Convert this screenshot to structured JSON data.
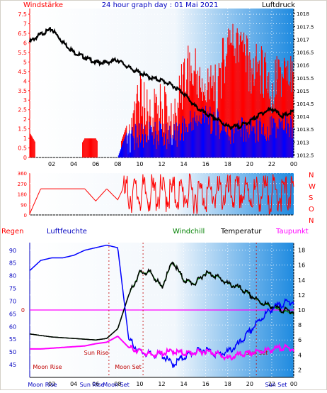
{
  "header": {
    "left_label": "Windstärke",
    "title": "24 hour graph day : 01 Mai 2021",
    "right_label": "Luftdruck"
  },
  "colors": {
    "frame": "#d4d0c8",
    "wind_gust": "#ff0000",
    "wind_avg": "#0000ff",
    "pressure": "#000000",
    "direction": "#ff0000",
    "humidity": "#0000ff",
    "temperature": "#000000",
    "windchill": "#008000",
    "dewpoint": "#ff00ff",
    "rain_line": "#c00000",
    "label_red": "#ff0000",
    "label_blue": "#0000c0"
  },
  "chart_data": [
    {
      "type": "bar",
      "title": "24 hour graph day : 01 Mai 2021",
      "ylabel_left": "Windstärke",
      "ylabel_right": "Luftdruck",
      "xticks": [
        "02",
        "04",
        "06",
        "08",
        "10",
        "12",
        "14",
        "16",
        "18",
        "20",
        "22",
        "00"
      ],
      "yticks_left": [
        "0",
        "0.5",
        "1",
        "1.5",
        "2",
        "2.5",
        "3",
        "3.5",
        "4",
        "4.5",
        "5",
        "5.5",
        "6",
        "6.5",
        "7",
        "7.5"
      ],
      "yticks_right": [
        "1012.5",
        "1013",
        "1013.5",
        "1014",
        "1014.5",
        "1015",
        "1015.5",
        "1016",
        "1016.5",
        "1017",
        "1017.5",
        "1018"
      ],
      "ylim_left": [
        0,
        7.8
      ],
      "ylim_right": [
        1012.4,
        1018.2
      ],
      "x_hours": [
        0,
        1,
        2,
        3,
        4,
        5,
        6,
        7,
        8,
        9,
        10,
        11,
        12,
        13,
        14,
        15,
        16,
        17,
        18,
        19,
        20,
        21,
        22,
        23,
        24
      ],
      "series": [
        {
          "name": "Windstärke",
          "values": [
            1.3,
            0.3,
            0,
            0,
            0,
            1,
            1,
            0,
            0.3,
            2,
            4.5,
            3.5,
            4,
            3,
            5.8,
            6,
            5,
            5,
            7.5,
            7.6,
            6,
            6.2,
            5,
            5.8,
            5.6
          ]
        },
        {
          "name": "Wind avg",
          "values": [
            0,
            0,
            0,
            0,
            0,
            0,
            0,
            0,
            0,
            1.6,
            1.9,
            1.9,
            1.9,
            1.9,
            2.2,
            2.8,
            2.8,
            2.6,
            2,
            2.1,
            2.2,
            2.2,
            2.2,
            2.4,
            2.3
          ]
        },
        {
          "name": "Luftdruck",
          "values": [
            1016.9,
            1017.2,
            1017.4,
            1016.9,
            1016.5,
            1016.3,
            1016.1,
            1016.1,
            1016.2,
            1015.9,
            1015.7,
            1015.5,
            1015.4,
            1015.2,
            1014.9,
            1014.4,
            1014.1,
            1013.9,
            1013.6,
            1013.6,
            1013.8,
            1014.1,
            1014.3,
            1014,
            1014.2
          ]
        }
      ]
    },
    {
      "type": "line",
      "yticks": [
        "0",
        "90",
        "180",
        "270",
        "360"
      ],
      "ylim": [
        0,
        360
      ],
      "direction_labels": [
        "N",
        "W",
        "S",
        "O",
        "N"
      ],
      "x_hours": [
        0,
        1,
        2,
        3,
        4,
        5,
        6,
        7,
        8,
        9,
        10,
        11,
        12,
        13,
        14,
        15,
        16,
        17,
        18,
        19,
        20,
        21,
        22,
        23,
        24
      ],
      "series": [
        {
          "name": "Windrichtung",
          "values": [
            10,
            225,
            225,
            225,
            225,
            225,
            120,
            225,
            130,
            330,
            100,
            300,
            70,
            340,
            90,
            270,
            50,
            350,
            80,
            300,
            60,
            330,
            40,
            330,
            30
          ]
        }
      ]
    },
    {
      "type": "line",
      "labels": {
        "rain": "Regen",
        "humidity": "Luftfeuchte",
        "windchill": "Windchill",
        "temperature": "Temperatur",
        "dewpoint": "Taupunkt"
      },
      "yticks_humidity": [
        "45",
        "50",
        "55",
        "60",
        "65",
        "70",
        "75",
        "80",
        "85",
        "90"
      ],
      "rain_axis": [
        "0"
      ],
      "yticks_temp": [
        "2",
        "4",
        "6",
        "8",
        "10",
        "12",
        "14",
        "16",
        "18"
      ],
      "ylim_humidity": [
        40,
        93
      ],
      "ylim_temp": [
        1,
        19
      ],
      "xticks": [
        "02",
        "04",
        "06",
        "08",
        "10",
        "12",
        "14",
        "16",
        "18",
        "20",
        "22",
        "00"
      ],
      "annotations": [
        "Sun Rise",
        "Sun Set",
        "Moon Rise",
        "Moon Set",
        "Moon Rise",
        "Sun Rise",
        "Sun Set",
        "Moon Set"
      ],
      "x_hours": [
        0,
        1,
        2,
        3,
        4,
        5,
        6,
        7,
        8,
        9,
        10,
        11,
        12,
        13,
        14,
        15,
        16,
        17,
        18,
        19,
        20,
        21,
        22,
        23,
        24
      ],
      "series": [
        {
          "name": "Luftfeuchte",
          "values": [
            82,
            86,
            87,
            87,
            88,
            90,
            91,
            92,
            91,
            55,
            50,
            49,
            49,
            45,
            48,
            50,
            51,
            49,
            50,
            53,
            58,
            63,
            67,
            69,
            70
          ]
        },
        {
          "name": "Temperatur",
          "values": [
            6.8,
            6.6,
            6.4,
            6.3,
            6.2,
            6.1,
            6,
            6.2,
            7.5,
            12,
            15,
            15,
            13,
            16.5,
            14,
            13.5,
            15,
            14.5,
            13.5,
            13,
            12,
            11,
            10.5,
            10,
            9.8
          ]
        },
        {
          "name": "Windchill",
          "values": [
            6.8,
            6.6,
            6.4,
            6.3,
            6.2,
            6.1,
            6,
            6.2,
            7.5,
            12,
            15,
            15,
            13,
            16.5,
            14,
            13.5,
            15,
            14.5,
            13.5,
            13,
            12,
            11,
            10.4,
            9.8,
            9.6
          ]
        },
        {
          "name": "Taupunkt",
          "values": [
            4.8,
            4.8,
            4.9,
            5,
            5.1,
            5.2,
            5.5,
            5.7,
            6.5,
            5,
            4.5,
            4,
            4.2,
            4.5,
            4.2,
            4.3,
            4.5,
            4.2,
            3.5,
            4,
            4.2,
            4.5,
            4.7,
            5,
            4.8
          ]
        },
        {
          "name": "Regen",
          "values": [
            0,
            0,
            0,
            0,
            0,
            0,
            0,
            0,
            0,
            0,
            0,
            0,
            0,
            0,
            0,
            0,
            0,
            0,
            0,
            0,
            0,
            0,
            0,
            0,
            0
          ]
        }
      ]
    }
  ]
}
